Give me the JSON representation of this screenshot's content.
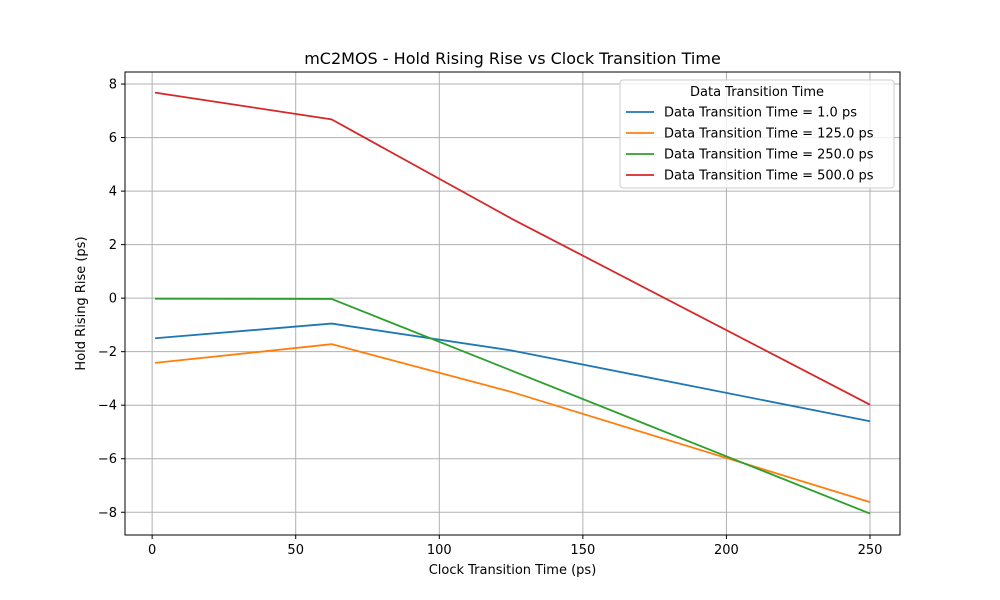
{
  "chart_data": {
    "type": "line",
    "title": "mC2MOS - Hold Rising Rise vs Clock Transition Time",
    "xlabel": "Clock Transition Time (ps)",
    "ylabel": "Hold Rising Rise (ps)",
    "x": [
      1.0,
      62.5,
      125.0,
      250.0
    ],
    "xlim": [
      -9.45,
      260.45
    ],
    "ylim": [
      -8.85,
      8.45
    ],
    "xticks": [
      0,
      50,
      100,
      150,
      200,
      250
    ],
    "yticks": [
      -8,
      -6,
      -4,
      -2,
      0,
      2,
      4,
      6,
      8
    ],
    "grid": true,
    "legend": {
      "title": "Data Transition Time",
      "placement": "top-right"
    },
    "series": [
      {
        "name": "Data Transition Time = 1.0 ps",
        "color": "#1f77b4",
        "values": [
          -1.5,
          -0.95,
          -1.95,
          -4.6
        ]
      },
      {
        "name": "Data Transition Time = 125.0 ps",
        "color": "#ff7f0e",
        "values": [
          -2.42,
          -1.72,
          -3.5,
          -7.62
        ]
      },
      {
        "name": "Data Transition Time = 250.0 ps",
        "color": "#2ca02c",
        "values": [
          -0.02,
          -0.03,
          -2.7,
          -8.05
        ]
      },
      {
        "name": "Data Transition Time = 500.0 ps",
        "color": "#d62728",
        "values": [
          7.68,
          6.68,
          2.98,
          -3.98
        ]
      }
    ]
  }
}
